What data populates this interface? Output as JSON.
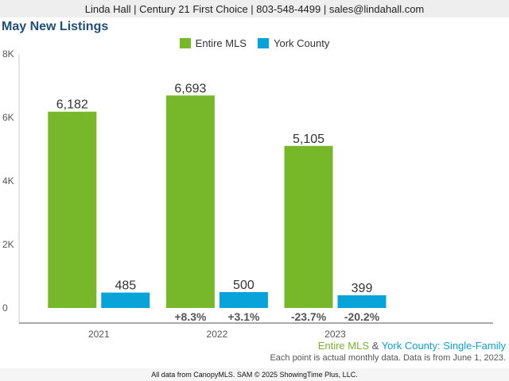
{
  "header": {
    "text": "Linda Hall | Century 21 First Choice | 803-548-4499 | sales@lindahall.com"
  },
  "colors": {
    "entire_mls": "#77b82a",
    "york_county": "#08a3d9"
  },
  "chart_data": {
    "type": "bar",
    "title": "May New Listings",
    "categories": [
      "2021",
      "2022",
      "2023"
    ],
    "series": [
      {
        "name": "Entire MLS",
        "values": [
          6182,
          6693,
          5105
        ],
        "value_labels": [
          "6,182",
          "6,693",
          "5,105"
        ],
        "changes": [
          "",
          "+8.3%",
          "-23.7%"
        ]
      },
      {
        "name": "York County",
        "values": [
          485,
          500,
          399
        ],
        "value_labels": [
          "485",
          "500",
          "399"
        ],
        "changes": [
          "",
          "+3.1%",
          "-20.2%"
        ]
      }
    ],
    "ylim": [
      0,
      8000
    ],
    "yticks": [
      0,
      2000,
      4000,
      6000,
      8000
    ],
    "ytick_labels": [
      "0",
      "2K",
      "4K",
      "6K",
      "8K"
    ],
    "grid": false,
    "legend_position": "top-center"
  },
  "subtitle": {
    "series1": "Entire MLS",
    "connector": " & ",
    "series2": "York County",
    "suffix": ": Single-Family"
  },
  "note": "Each point is actual monthly data. Data is from June 1, 2023.",
  "footer": "All data from CanopyMLS. SAM © 2025 ShowingTime Plus, LLC."
}
